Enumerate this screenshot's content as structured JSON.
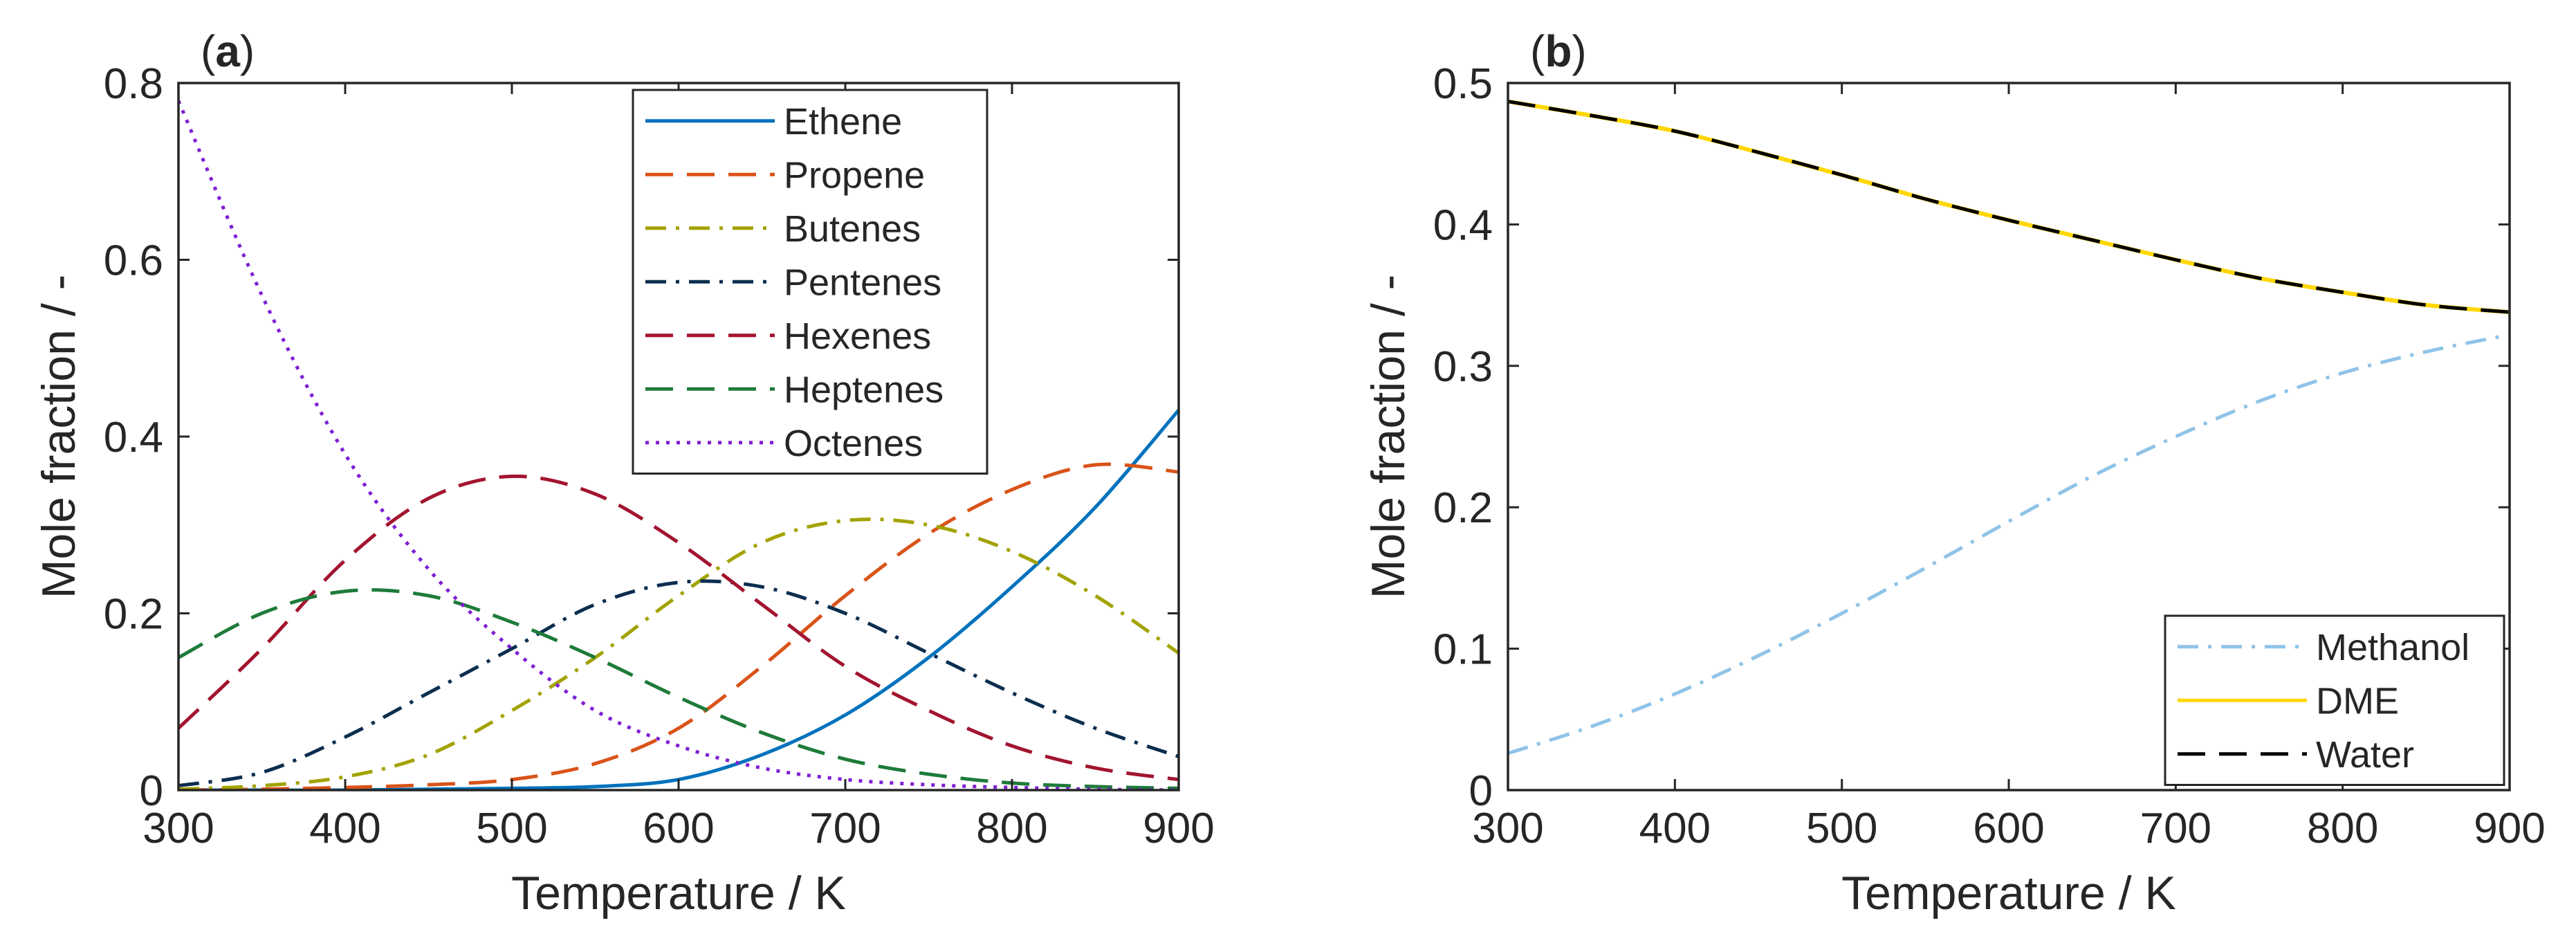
{
  "chart_data": [
    {
      "type": "line",
      "panel_label": "(a)",
      "panel_letter": "a",
      "xlabel": "Temperature / K",
      "ylabel": "Mole fraction / -",
      "xlim": [
        300,
        900
      ],
      "ylim": [
        0,
        0.8
      ],
      "xticks": [
        300,
        400,
        500,
        600,
        700,
        800,
        900
      ],
      "yticks": [
        0,
        0.2,
        0.4,
        0.6,
        0.8
      ],
      "legend_position": "top-center",
      "x": [
        300,
        350,
        400,
        450,
        500,
        550,
        600,
        650,
        700,
        750,
        800,
        850,
        900
      ],
      "series": [
        {
          "name": "Ethene",
          "color": "#0072BD",
          "style": "solid",
          "values": [
            0,
            0,
            0,
            0.001,
            0.002,
            0.004,
            0.012,
            0.04,
            0.085,
            0.15,
            0.23,
            0.32,
            0.43
          ]
        },
        {
          "name": "Propene",
          "color": "#D95319",
          "style": "dash",
          "values": [
            0,
            0.001,
            0.003,
            0.006,
            0.012,
            0.03,
            0.07,
            0.14,
            0.22,
            0.29,
            0.34,
            0.368,
            0.36
          ]
        },
        {
          "name": "Butenes",
          "color": "#A2A200",
          "style": "dashdot",
          "values": [
            0.001,
            0.005,
            0.015,
            0.04,
            0.09,
            0.15,
            0.22,
            0.28,
            0.305,
            0.3,
            0.27,
            0.22,
            0.155
          ]
        },
        {
          "name": "Pentenes",
          "color": "#0B2E4F",
          "style": "dashdot",
          "values": [
            0.005,
            0.02,
            0.06,
            0.11,
            0.16,
            0.21,
            0.235,
            0.23,
            0.2,
            0.155,
            0.11,
            0.07,
            0.038
          ]
        },
        {
          "name": "Hexenes",
          "color": "#A2142F",
          "style": "dash",
          "values": [
            0.07,
            0.16,
            0.26,
            0.33,
            0.355,
            0.335,
            0.28,
            0.21,
            0.14,
            0.09,
            0.05,
            0.025,
            0.012
          ]
        },
        {
          "name": "Heptenes",
          "color": "#1E7B3A",
          "style": "dash",
          "values": [
            0.15,
            0.2,
            0.225,
            0.22,
            0.19,
            0.15,
            0.105,
            0.065,
            0.035,
            0.018,
            0.008,
            0.004,
            0.002
          ]
        },
        {
          "name": "Octenes",
          "color": "#7E1FD4",
          "style": "dot",
          "values": [
            0.78,
            0.56,
            0.38,
            0.25,
            0.16,
            0.09,
            0.05,
            0.025,
            0.012,
            0.006,
            0.003,
            0.001,
            0
          ]
        }
      ]
    },
    {
      "type": "line",
      "panel_label": "(b)",
      "panel_letter": "b",
      "xlabel": "Temperature / K",
      "ylabel": "Mole fraction / -",
      "xlim": [
        300,
        900
      ],
      "ylim": [
        0,
        0.5
      ],
      "xticks": [
        300,
        400,
        500,
        600,
        700,
        800,
        900
      ],
      "yticks": [
        0,
        0.1,
        0.2,
        0.3,
        0.4,
        0.5
      ],
      "legend_position": "bottom-right",
      "x": [
        300,
        350,
        400,
        450,
        500,
        550,
        600,
        650,
        700,
        750,
        800,
        850,
        900
      ],
      "series": [
        {
          "name": "Methanol",
          "color": "#8FC3E8",
          "style": "dashdot",
          "values": [
            0.026,
            0.045,
            0.068,
            0.095,
            0.125,
            0.157,
            0.19,
            0.222,
            0.25,
            0.275,
            0.295,
            0.31,
            0.322
          ]
        },
        {
          "name": "DME",
          "color": "#FFD700",
          "style": "solid",
          "values": [
            0.487,
            0.477,
            0.466,
            0.451,
            0.435,
            0.418,
            0.403,
            0.389,
            0.375,
            0.362,
            0.352,
            0.343,
            0.338
          ]
        },
        {
          "name": "Water",
          "color": "#000000",
          "style": "dash",
          "values": [
            0.487,
            0.477,
            0.466,
            0.451,
            0.435,
            0.418,
            0.403,
            0.389,
            0.375,
            0.362,
            0.352,
            0.343,
            0.338
          ]
        }
      ]
    }
  ]
}
